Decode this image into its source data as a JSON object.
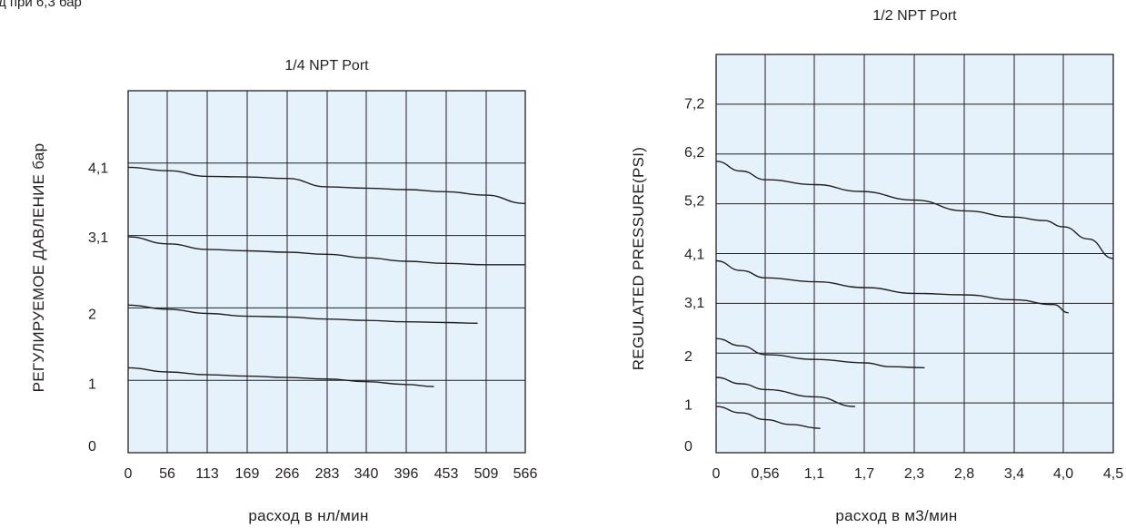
{
  "top_note": "д при  6,3 бар",
  "chart_data": [
    {
      "type": "line",
      "title": "1/4 NPT Port",
      "xlabel": "расход в нл/мин",
      "ylabel": "РЕГУЛИРУЕМОЕ ДАВЛЕНИЕ бар",
      "x_tick_labels": [
        "0",
        "56",
        "113",
        "169",
        "266",
        "283",
        "340",
        "396",
        "453",
        "509",
        "566"
      ],
      "y_tick_labels": [
        "0",
        "1",
        "2",
        "3,1",
        "4,1"
      ],
      "y_tick_values": [
        0,
        1,
        2,
        3.1,
        4.1
      ],
      "xlim": [
        0,
        10
      ],
      "ylim": [
        0,
        5.2
      ],
      "grid": true,
      "background": "#e5f2fc",
      "series": [
        {
          "x": [
            0,
            1,
            2,
            3,
            4,
            5,
            6,
            7,
            8,
            9,
            10
          ],
          "y": [
            4.1,
            4.05,
            3.97,
            3.96,
            3.94,
            3.82,
            3.8,
            3.78,
            3.75,
            3.7,
            3.58
          ]
        },
        {
          "x": [
            0,
            1,
            2,
            3,
            4,
            5,
            6,
            7,
            8,
            9,
            10
          ],
          "y": [
            3.1,
            3.0,
            2.92,
            2.9,
            2.88,
            2.85,
            2.8,
            2.75,
            2.72,
            2.7,
            2.7
          ]
        },
        {
          "x": [
            0,
            1,
            2,
            3,
            4,
            5,
            6,
            7,
            8,
            8.8
          ],
          "y": [
            2.12,
            2.06,
            2.0,
            1.96,
            1.95,
            1.92,
            1.9,
            1.88,
            1.87,
            1.86
          ]
        },
        {
          "x": [
            0,
            1,
            2,
            3,
            4,
            5,
            6,
            7,
            7.7
          ],
          "y": [
            1.22,
            1.16,
            1.12,
            1.1,
            1.08,
            1.06,
            1.02,
            0.98,
            0.95
          ]
        }
      ]
    },
    {
      "type": "line",
      "title": "1/2 NPT Port",
      "xlabel": "расход в м3/мин",
      "ylabel": "REGULATED PRESSURE(PSI)",
      "x_tick_labels": [
        "0",
        "0,56",
        "1,1",
        "1,7",
        "2,3",
        "2,8",
        "3,4",
        "4,0",
        "4,5"
      ],
      "y_tick_labels": [
        "0",
        "1",
        "2",
        "3,1",
        "4,1",
        "5,2",
        "6,2",
        "7,2"
      ],
      "y_tick_values": [
        0,
        1,
        2,
        3.1,
        4.1,
        5.2,
        6.2,
        7.2
      ],
      "xlim": [
        0,
        8
      ],
      "ylim": [
        0,
        8.2
      ],
      "grid": true,
      "background": "#e5f2fc",
      "series": [
        {
          "x": [
            0,
            0.5,
            1,
            2,
            2.9,
            4,
            5,
            6,
            6.6,
            7,
            7.5,
            8
          ],
          "y": [
            6.0,
            5.8,
            5.62,
            5.52,
            5.38,
            5.2,
            4.98,
            4.85,
            4.78,
            4.65,
            4.4,
            4.0
          ]
        },
        {
          "x": [
            0,
            0.5,
            1,
            2,
            3,
            4,
            5,
            6,
            6.8,
            7.1
          ],
          "y": [
            3.95,
            3.75,
            3.6,
            3.52,
            3.4,
            3.28,
            3.25,
            3.15,
            3.05,
            2.88
          ]
        },
        {
          "x": [
            0,
            0.5,
            1,
            2,
            3,
            3.5,
            4.2
          ],
          "y": [
            2.35,
            2.2,
            2.02,
            1.92,
            1.85,
            1.77,
            1.75
          ]
        },
        {
          "x": [
            0,
            0.5,
            1,
            2,
            2.8
          ],
          "y": [
            1.55,
            1.42,
            1.3,
            1.15,
            0.95
          ]
        },
        {
          "x": [
            0,
            0.5,
            1,
            1.5,
            2.1
          ],
          "y": [
            0.95,
            0.82,
            0.68,
            0.58,
            0.5
          ]
        }
      ]
    }
  ]
}
